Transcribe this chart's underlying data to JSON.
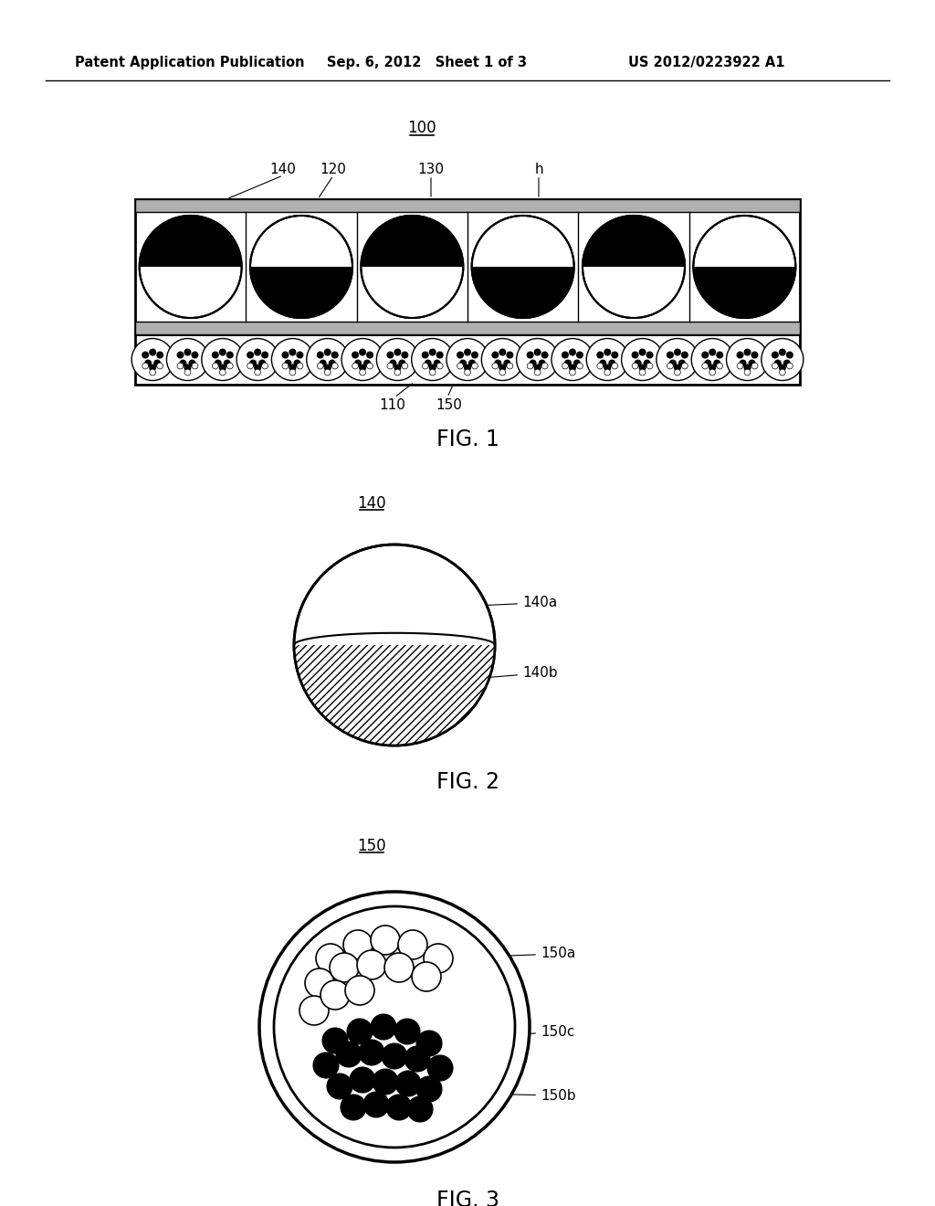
{
  "header_left": "Patent Application Publication",
  "header_mid": "Sep. 6, 2012   Sheet 1 of 3",
  "header_right": "US 2012/0223922 A1",
  "fig1_label": "FIG. 1",
  "fig2_label": "FIG. 2",
  "fig3_label": "FIG. 3",
  "label_100": "100",
  "label_140": "140",
  "label_120": "120",
  "label_130": "130",
  "label_h": "h",
  "label_110": "110",
  "label_150": "150",
  "label_140a": "140a",
  "label_140b": "140b",
  "label_150a": "150a",
  "label_150b": "150b",
  "label_150c": "150c",
  "bg_color": "#ffffff",
  "fg_color": "#000000"
}
